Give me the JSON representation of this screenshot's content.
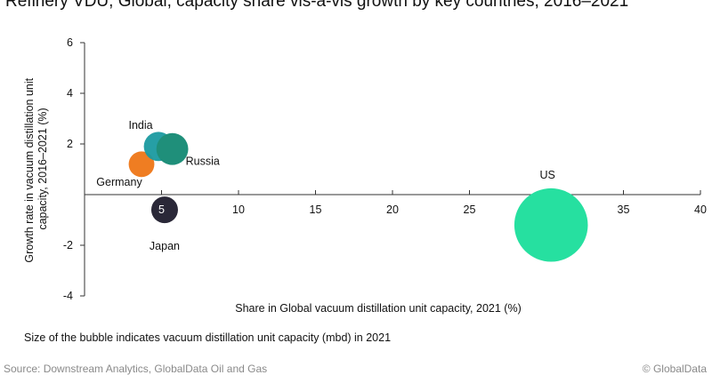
{
  "header": {
    "title": "Refinery VDU, Global, capacity share vis-à-vis growth by key countries, 2016–2021"
  },
  "chart_data": {
    "type": "scatter",
    "subtype": "bubble",
    "xlabel": "Share in Global vacuum distillation unit capacity, 2021 (%)",
    "ylabel_lines": [
      "Growth rate in vacuum distillation unit",
      "capacity, 2016–2021 (%)"
    ],
    "xlim": [
      0,
      40
    ],
    "ylim": [
      -4,
      6
    ],
    "x_ticks": [
      5,
      10,
      15,
      20,
      25,
      30,
      35,
      40
    ],
    "y_ticks": [
      6,
      4,
      2,
      -2,
      -4
    ],
    "y_tick_labels": [
      "6",
      "4",
      "2",
      "-2",
      "-4"
    ],
    "x_tick_labels": [
      "5",
      "10",
      "15",
      "20",
      "25",
      "30",
      "35",
      "40"
    ],
    "grid": false,
    "points": [
      {
        "label": "India",
        "x": 4.8,
        "y": 1.9,
        "size": 4.8,
        "color": "#1a9aa0"
      },
      {
        "label": "Russia",
        "x": 5.7,
        "y": 1.8,
        "size": 5.7,
        "color": "#1f8f7a"
      },
      {
        "label": "Germany",
        "x": 3.7,
        "y": 1.2,
        "size": 3.7,
        "color": "#ef7d22"
      },
      {
        "label": "Japan",
        "x": 5.2,
        "y": -0.6,
        "size": 4.0,
        "color": "#2a2838"
      },
      {
        "label": "US",
        "x": 30.3,
        "y": -1.2,
        "size": 30.3,
        "color": "#26e0a0"
      }
    ]
  },
  "footer": {
    "note": "Size of the bubble indicates vacuum distillation unit capacity (mbd) in 2021",
    "source": "Source: Downstream Analytics, GlobalData Oil and Gas",
    "copyright": "© GlobalData"
  }
}
